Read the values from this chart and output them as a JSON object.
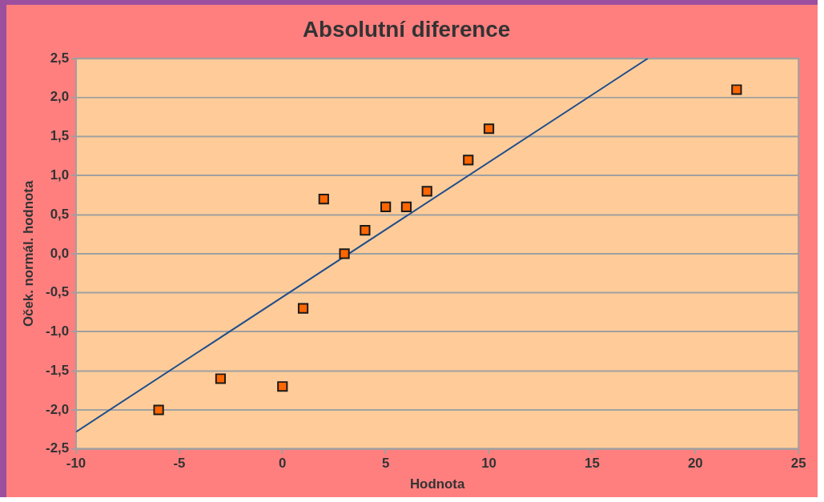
{
  "chart_data": {
    "type": "scatter",
    "title": "Absolutní diference",
    "xlabel": "Hodnota",
    "ylabel": "Oček. normál. hodnota",
    "series": [
      {
        "color": "#ff6600",
        "x": [
          -6,
          -3,
          0,
          1,
          2,
          3,
          4,
          5,
          6,
          7,
          9,
          10,
          22
        ],
        "values": [
          -2.0,
          -1.6,
          -1.7,
          -0.7,
          0.7,
          0.0,
          0.3,
          0.6,
          0.6,
          0.8,
          1.2,
          1.6,
          2.1
        ]
      },
      {
        "type": "line",
        "marker": "none",
        "color": "#1f4e8c",
        "x": [
          -10,
          17.7
        ],
        "values": [
          -2.28,
          2.5
        ]
      }
    ],
    "xlim": [
      -10,
      25
    ],
    "xticks": [
      -10,
      -5,
      0,
      5,
      10,
      15,
      20,
      25
    ],
    "ylim": [
      -2.5,
      2.5
    ],
    "yticks": [
      {
        "value": -2.5,
        "label": "-2,5"
      },
      {
        "value": -2,
        "label": "-2,0"
      },
      {
        "value": -1.5,
        "label": "-1,5"
      },
      {
        "value": -1,
        "label": "-1,0"
      },
      {
        "value": -0.5,
        "label": "-0,5"
      },
      {
        "value": 0,
        "label": "0,0"
      },
      {
        "value": 0.5,
        "label": "0,5"
      },
      {
        "value": 1,
        "label": "1,0"
      },
      {
        "value": 1.5,
        "label": "1,5"
      },
      {
        "value": 2,
        "label": "2,0"
      },
      {
        "value": 2.5,
        "label": "2,5"
      }
    ],
    "grid": "y",
    "legend": false,
    "marker": "square"
  }
}
